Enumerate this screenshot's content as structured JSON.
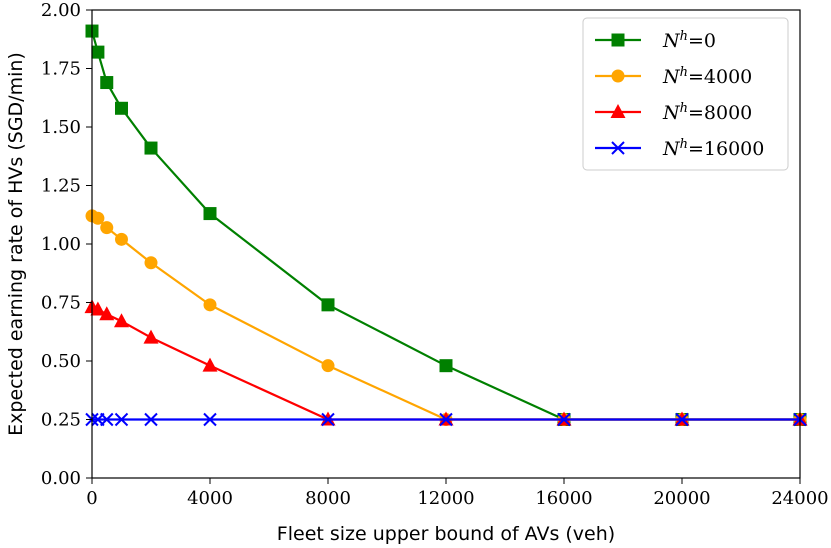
{
  "chart_data": {
    "type": "line",
    "title": "",
    "xlabel": "Fleet size upper bound of AVs (veh)",
    "ylabel": "Expected earning rate of HVs (SGD/min)",
    "xlim": [
      0,
      24000
    ],
    "ylim": [
      0.0,
      2.0
    ],
    "xticks": [
      0,
      4000,
      8000,
      12000,
      16000,
      20000,
      24000
    ],
    "xtick_labels": [
      "0",
      "4000",
      "8000",
      "12000",
      "16000",
      "20000",
      "24000"
    ],
    "yticks": [
      0.0,
      0.25,
      0.5,
      0.75,
      1.0,
      1.25,
      1.5,
      1.75,
      2.0
    ],
    "ytick_labels": [
      "0.00",
      "0.25",
      "0.50",
      "0.75",
      "1.00",
      "1.25",
      "1.50",
      "1.75",
      "2.00"
    ],
    "grid": false,
    "legend_position": "top-right",
    "series": [
      {
        "name": "N^h=0",
        "legend_symbol": "N",
        "legend_sup": "h",
        "legend_value": "=0",
        "color": "#008000",
        "marker": "square",
        "x": [
          0,
          200,
          500,
          1000,
          2000,
          4000,
          8000,
          12000,
          16000,
          20000,
          24000
        ],
        "y": [
          1.91,
          1.82,
          1.69,
          1.58,
          1.41,
          1.13,
          0.74,
          0.48,
          0.25,
          0.25,
          0.25
        ]
      },
      {
        "name": "N^h=4000",
        "legend_symbol": "N",
        "legend_sup": "h",
        "legend_value": "=4000",
        "color": "#FFA500",
        "marker": "circle",
        "x": [
          0,
          200,
          500,
          1000,
          2000,
          4000,
          8000,
          12000,
          16000,
          20000,
          24000
        ],
        "y": [
          1.12,
          1.11,
          1.07,
          1.02,
          0.92,
          0.74,
          0.48,
          0.25,
          0.25,
          0.25,
          0.25
        ]
      },
      {
        "name": "N^h=8000",
        "legend_symbol": "N",
        "legend_sup": "h",
        "legend_value": "=8000",
        "color": "#FF0000",
        "marker": "triangle",
        "x": [
          0,
          200,
          500,
          1000,
          2000,
          4000,
          8000,
          12000,
          16000,
          20000,
          24000
        ],
        "y": [
          0.73,
          0.72,
          0.7,
          0.67,
          0.6,
          0.48,
          0.25,
          0.25,
          0.25,
          0.25,
          0.25
        ]
      },
      {
        "name": "N^h=16000",
        "legend_symbol": "N",
        "legend_sup": "h",
        "legend_value": "=16000",
        "color": "#0000FF",
        "marker": "x",
        "x": [
          0,
          200,
          500,
          1000,
          2000,
          4000,
          8000,
          12000,
          16000,
          20000,
          24000
        ],
        "y": [
          0.25,
          0.25,
          0.25,
          0.25,
          0.25,
          0.25,
          0.25,
          0.25,
          0.25,
          0.25,
          0.25
        ]
      }
    ]
  }
}
